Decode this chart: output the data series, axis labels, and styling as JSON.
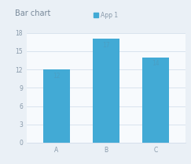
{
  "title": "Bar chart",
  "categories": [
    "A",
    "B",
    "C"
  ],
  "values": [
    12,
    17,
    14
  ],
  "bar_color": "#42aad5",
  "legend_label": "App 1",
  "ylim": [
    0,
    18
  ],
  "yticks": [
    0,
    3,
    6,
    9,
    12,
    15,
    18
  ],
  "title_fontsize": 7.0,
  "axis_fontsize": 5.5,
  "label_fontsize": 5.5,
  "background_color": "#eaf0f6",
  "plot_bg_color": "#f7fafd",
  "grid_color": "#ccd9e8",
  "bar_width": 0.55,
  "label_color": "#4a9fc4"
}
